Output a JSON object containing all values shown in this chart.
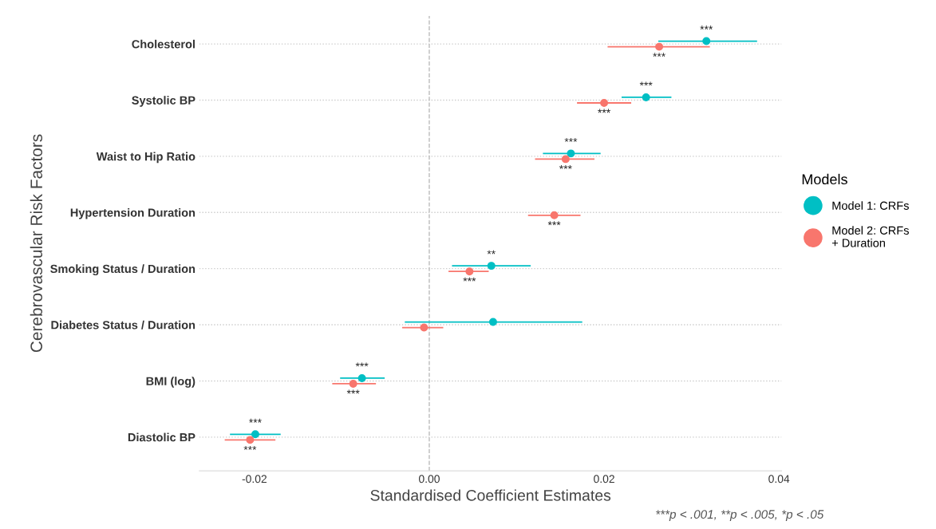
{
  "chart_data": {
    "type": "scatter",
    "orientation": "horizontal",
    "categories": [
      "Cholesterol",
      "Systolic BP",
      "Waist to Hip Ratio",
      "Hypertension Duration",
      "Smoking Status / Duration",
      "Diabetes Status / Duration",
      "BMI (log)",
      "Diastolic BP"
    ],
    "series": [
      {
        "name": "Model 1: CRFs",
        "color": "#00bfc4",
        "values": [
          0.0317,
          0.0248,
          0.0162,
          null,
          0.0071,
          0.0073,
          -0.0077,
          -0.0199
        ],
        "errors": [
          [
            0.0262,
            0.0375
          ],
          [
            0.022,
            0.0277
          ],
          [
            0.013,
            0.0196
          ],
          null,
          [
            0.0026,
            0.0116
          ],
          [
            -0.0028,
            0.0175
          ],
          [
            -0.0102,
            -0.0051
          ],
          [
            -0.0228,
            -0.017
          ]
        ],
        "value_labels": [
          "***",
          "***",
          "***",
          null,
          "**",
          null,
          "***",
          "***"
        ]
      },
      {
        "name": "Model 2: CRFs + Duration",
        "color": "#f8766d",
        "values": [
          0.0263,
          0.02,
          0.0156,
          0.0143,
          0.0046,
          -0.0006,
          -0.0087,
          -0.0205
        ],
        "errors": [
          [
            0.0204,
            0.0321
          ],
          [
            0.0169,
            0.0231
          ],
          [
            0.0121,
            0.0189
          ],
          [
            0.0113,
            0.0173
          ],
          [
            0.0022,
            0.0068
          ],
          [
            -0.0031,
            0.0016
          ],
          [
            -0.0111,
            -0.0061
          ],
          [
            -0.0234,
            -0.0176
          ]
        ],
        "value_labels": [
          "***",
          "***",
          "***",
          "***",
          "***",
          null,
          "***",
          "***"
        ]
      }
    ],
    "xlabel": "Standardised Coefficient Estimates",
    "ylabel": "Cerebrovascular Risk Factors",
    "xlim": [
      -0.0263,
      0.0403
    ],
    "xticks": [
      {
        "value": -0.02,
        "label": "-0.02"
      },
      {
        "value": 0.0,
        "label": "0.00"
      },
      {
        "value": 0.02,
        "label": "0.02"
      },
      {
        "value": 0.04,
        "label": "0.04"
      }
    ],
    "ref_lines": [
      {
        "axis": "x",
        "value": 0,
        "color": "#bbbbbb",
        "line_style": "dashed"
      }
    ],
    "grid": "y",
    "legend": "right",
    "legend_title": "Models",
    "marker": "circle",
    "annotations": [
      "***p < .001, **p < .005, *p < .05"
    ]
  }
}
